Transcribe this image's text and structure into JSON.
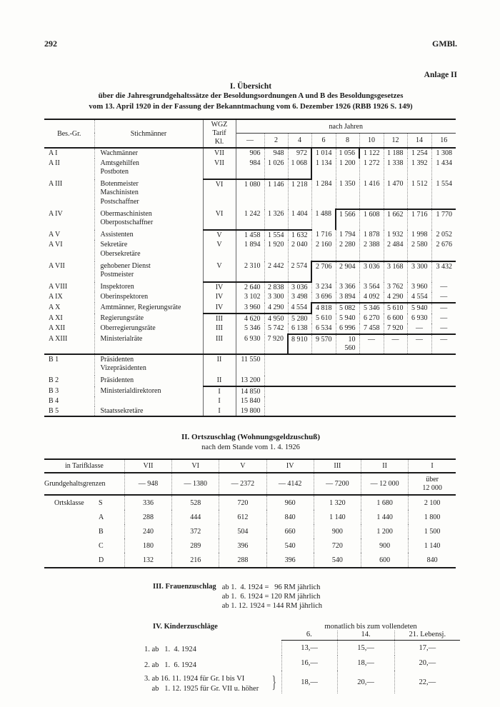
{
  "page": {
    "number": "292",
    "journal": "GMBl.",
    "annex": "Anlage II"
  },
  "table1": {
    "title1": "I. Übersicht",
    "title2": "über die Jahresgrundgehaltssätze der Besoldungsordnungen A und B des Besoldungsgesetzes",
    "title3": "vom 13. April 1920 in der Fassung der Bekanntmachung vom 6. Dezember 1926 (RBB 1926 S. 149)",
    "headers": {
      "grade": "Bes.-Gr.",
      "label": "Stichmänner",
      "wgz": "WGZ\nTarif\nKl.",
      "group": "nach Jahren"
    },
    "year_cols": [
      "—",
      "2",
      "4",
      "6",
      "8",
      "10",
      "12",
      "14",
      "16"
    ],
    "rows": [
      {
        "grade": "A I",
        "names": [
          "Wachmänner"
        ],
        "wgz": "VII",
        "values": [
          "906",
          "948",
          "972",
          "1 014",
          "1 056",
          "1 122",
          "1 188",
          "1 254",
          "1 308"
        ],
        "m": {
          "ht": [
            3,
            4
          ],
          "hl": [
            3
          ],
          "hr": [
            4
          ]
        }
      },
      {
        "grade": "A II",
        "names": [
          "Amtsgehilfen",
          "Postboten"
        ],
        "wgz": "VII",
        "values": [
          "984",
          "1 026",
          "1 068",
          "1 134",
          "1 200",
          "1 272",
          "1 338",
          "1 392",
          "1 434"
        ],
        "m": {
          "hl": [
            3
          ]
        }
      },
      {
        "grade": "A III",
        "names": [
          "Botenmeister",
          "Maschinisten",
          "Postschaffner"
        ],
        "wgz": "VI",
        "values": [
          "1 080",
          "1 146",
          "1 218",
          "1 284",
          "1 350",
          "1 416",
          "1 470",
          "1 512",
          "1 554"
        ],
        "m": {
          "wt": true,
          "ht": [
            0,
            1,
            2
          ],
          "hb": [
            4,
            5,
            6,
            7,
            8
          ]
        }
      },
      {
        "grade": "A IV",
        "names": [
          "Obermaschinisten",
          "Oberpostschaffner"
        ],
        "wgz": "VI",
        "values": [
          "1 242",
          "1 326",
          "1 404",
          "1 488",
          "1 566",
          "1 608",
          "1 662",
          "1 716",
          "1 770"
        ],
        "m": {
          "hl": [
            4
          ]
        }
      },
      {
        "grade": "A V",
        "names": [
          "Assistenten"
        ],
        "wgz": "V",
        "values": [
          "1 458",
          "1 554",
          "1 632",
          "1 716",
          "1 794",
          "1 878",
          "1 932",
          "1 998",
          "2 052"
        ],
        "m": {
          "wt": true,
          "ht": [
            0,
            1,
            2
          ]
        }
      },
      {
        "grade": "A VI",
        "names": [
          "Sekretäre",
          "Obersekretäre"
        ],
        "wgz": "V",
        "values": [
          "1 894",
          "1 920",
          "2 040",
          "2 160",
          "2 280",
          "2 388",
          "2 484",
          "2 580",
          "2 676"
        ]
      },
      {
        "grade": "A VII",
        "names": [
          "gehobener Dienst",
          "Postmeister"
        ],
        "wgz": "V",
        "values": [
          "2 310",
          "2 442",
          "2 574",
          "2 706",
          "2 904",
          "3 036",
          "3 168",
          "3 300",
          "3 432"
        ],
        "m": {
          "hl": [
            3
          ],
          "ht": [
            3,
            4,
            5,
            6,
            7,
            8
          ]
        }
      },
      {
        "grade": "A VIII",
        "names": [
          "Inspektoren"
        ],
        "wgz": "IV",
        "values": [
          "2 640",
          "2 838",
          "3 036",
          "3 234",
          "3 366",
          "3 564",
          "3 762",
          "3 960",
          "—"
        ],
        "m": {
          "wt": true,
          "ht": [
            0,
            1,
            2
          ]
        }
      },
      {
        "grade": "A IX",
        "names": [
          "Oberinspektoren"
        ],
        "wgz": "IV",
        "values": [
          "3 102",
          "3 300",
          "3 498",
          "3 696",
          "3 894",
          "4 092",
          "4 290",
          "4 554",
          "—"
        ]
      },
      {
        "grade": "A X",
        "names": [
          "Amtmänner, Regierungsräte"
        ],
        "wgz": "IV",
        "values": [
          "3 960",
          "4 290",
          "4 554",
          "4 818",
          "5 082",
          "5 346",
          "5 610",
          "5 940",
          "—"
        ],
        "m": {
          "hr": [
            2
          ],
          "ht": [
            3,
            4,
            5,
            6,
            7,
            8
          ]
        }
      },
      {
        "grade": "A XI",
        "names": [
          "Regierungsräte"
        ],
        "wgz": "III",
        "values": [
          "4 620",
          "4 950",
          "5 280",
          "5 610",
          "5 940",
          "6 270",
          "6 600",
          "6 930",
          "—"
        ],
        "m": {
          "wt": true,
          "ht": [
            0,
            1,
            2
          ]
        }
      },
      {
        "grade": "A XII",
        "names": [
          "Oberregierungsräte"
        ],
        "wgz": "III",
        "values": [
          "5 346",
          "5 742",
          "6 138",
          "6 534",
          "6 996",
          "7 458",
          "7 920",
          "—",
          "—"
        ]
      },
      {
        "grade": "A XIII",
        "names": [
          "Ministerialräte"
        ],
        "wgz": "III",
        "values": [
          "6 930",
          "7 920",
          "8 910",
          "9 570",
          "10 560",
          "—",
          "—",
          "—",
          "—"
        ],
        "m": {
          "hl": [
            2
          ],
          "ht": [
            2,
            3,
            4,
            5,
            6,
            7,
            8
          ]
        }
      },
      {
        "grade": "B 1",
        "names": [
          "Präsidenten",
          "Vizepräsidenten"
        ],
        "wgz": "II",
        "values": [
          "11 550"
        ],
        "span": true,
        "m": {
          "rt": true
        }
      },
      {
        "grade": "B 2",
        "names": [
          "Präsidenten"
        ],
        "wgz": "II",
        "values": [
          "13 200"
        ],
        "span": true
      },
      {
        "grade": "B 3",
        "names": [
          "Ministerialdirektoren"
        ],
        "wgz": "I",
        "values": [
          "14 850"
        ],
        "span": true,
        "m": {
          "wt": true,
          "ht": [
            0,
            1
          ]
        }
      },
      {
        "grade": "B 4",
        "names": [],
        "wgz": "I",
        "values": [
          "15 840"
        ],
        "span": true
      },
      {
        "grade": "B 5",
        "names": [
          "Staatssekretäre"
        ],
        "wgz": "I",
        "values": [
          "19 800"
        ],
        "span": true
      }
    ]
  },
  "table2": {
    "title": "II. Ortszuschlag (Wohnungsgeldzuschuß)",
    "subtitle": "nach dem Stande vom 1. 4. 1926",
    "header": [
      "in Tarifklasse",
      "VII",
      "VI",
      "V",
      "IV",
      "III",
      "II",
      "I"
    ],
    "grund_label": "Grundgehaltsgrenzen",
    "grund_values": [
      "— 948",
      "— 1380",
      "— 2372",
      "— 4142",
      "— 7200",
      "— 12 000",
      "über\n12 000"
    ],
    "row_prefix": "Ortsklasse",
    "rows": [
      {
        "letter": "S",
        "values": [
          "336",
          "528",
          "720",
          "960",
          "1 320",
          "1 680",
          "2 100"
        ]
      },
      {
        "letter": "A",
        "values": [
          "288",
          "444",
          "612",
          "840",
          "1 140",
          "1 440",
          "1 800"
        ]
      },
      {
        "letter": "B",
        "values": [
          "240",
          "372",
          "504",
          "660",
          "900",
          "1 200",
          "1 500"
        ]
      },
      {
        "letter": "C",
        "values": [
          "180",
          "289",
          "396",
          "540",
          "720",
          "900",
          "1 140"
        ]
      },
      {
        "letter": "D",
        "values": [
          "132",
          "216",
          "288",
          "396",
          "540",
          "600",
          "840"
        ]
      }
    ]
  },
  "section3": {
    "heading": "III. Frauenzuschlag",
    "lines": [
      "ab 1.  4. 1924 =   96 RM jährlich",
      "ab 1.  6. 1924 = 120 RM jährlich",
      "ab 1. 12. 1924 = 144 RM jährlich"
    ]
  },
  "section4": {
    "heading": "IV. Kinderzuschläge",
    "span_header": "monatlich bis zum vollendeten",
    "cols": [
      "6.",
      "14.",
      "21. Lebensj."
    ],
    "rows": [
      {
        "labels": [
          "1. ab   1.  4. 1924"
        ],
        "values": [
          "13,—",
          "15,—",
          "17,—"
        ]
      },
      {
        "labels": [
          "2. ab   1.  6. 1924"
        ],
        "values": [
          "16,—",
          "18,—",
          "20,—"
        ]
      },
      {
        "labels": [
          "3. ab 16. 11. 1924 für Gr. I bis VI",
          "    ab   1. 12. 1925 für Gr. VII u. höher"
        ],
        "values": [
          "18,—",
          "20,—",
          "22,—"
        ],
        "brace": true
      }
    ]
  }
}
